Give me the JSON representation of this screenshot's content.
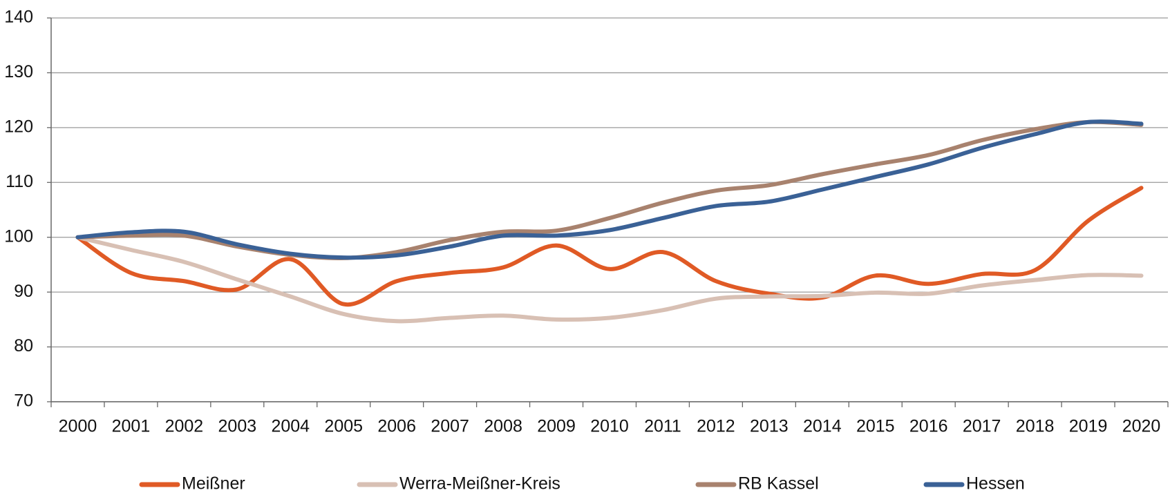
{
  "chart_data": {
    "type": "line",
    "categories": [
      "2000",
      "2001",
      "2002",
      "2003",
      "2004",
      "2005",
      "2006",
      "2007",
      "2008",
      "2009",
      "2010",
      "2011",
      "2012",
      "2013",
      "2014",
      "2015",
      "2016",
      "2017",
      "2018",
      "2019",
      "2020"
    ],
    "series": [
      {
        "name": "Meißner",
        "color": "#e05a25",
        "values": [
          100,
          93.5,
          92,
          90.5,
          96,
          87.8,
          92,
          93.5,
          94.5,
          98.5,
          94.2,
          97.3,
          92,
          89.7,
          89,
          93,
          91.5,
          93.3,
          94,
          103,
          109
        ]
      },
      {
        "name": "Werra-Meißner-Kreis",
        "color": "#d8c0b4",
        "values": [
          100,
          97.7,
          95.5,
          92.3,
          89.2,
          86,
          84.7,
          85.3,
          85.7,
          85,
          85.3,
          86.7,
          88.8,
          89.2,
          89.3,
          89.9,
          89.7,
          91.2,
          92.2,
          93.1,
          93
        ]
      },
      {
        "name": "RB Kassel",
        "color": "#a8826e",
        "values": [
          100,
          100.3,
          100.3,
          98.3,
          96.8,
          96.2,
          97.3,
          99.5,
          101,
          101.2,
          103.5,
          106.3,
          108.5,
          109.5,
          111.5,
          113.3,
          115,
          117.7,
          119.7,
          121,
          120.5
        ]
      },
      {
        "name": "Hessen",
        "color": "#3a6196",
        "values": [
          100,
          100.9,
          101,
          98.7,
          97,
          96.3,
          96.7,
          98.3,
          100.3,
          100.3,
          101.3,
          103.5,
          105.7,
          106.5,
          108.7,
          111,
          113.3,
          116.3,
          118.8,
          121,
          120.7
        ]
      }
    ],
    "ylim": [
      70,
      140
    ],
    "yticks": [
      70,
      80,
      90,
      100,
      110,
      120,
      130,
      140
    ],
    "grid": true,
    "legend": "bottom"
  }
}
